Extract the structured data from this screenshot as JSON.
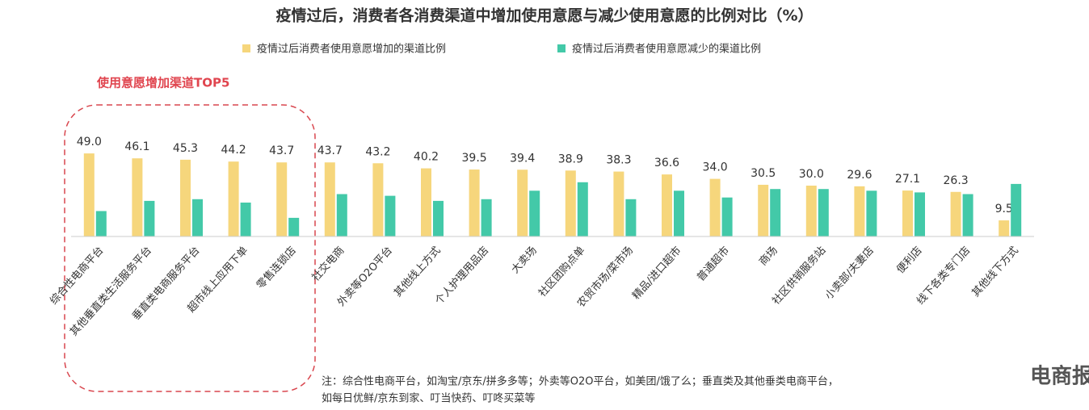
{
  "chart_data": {
    "type": "bar",
    "title": "疫情过后，消费者各消费渠道中增加使用意愿与减少使用意愿的比例对比（%）",
    "annotation": "使用意愿增加渠道TOP5",
    "notes": [
      "注：综合性电商平台，如淘宝/京东/拼多多等；外卖等O2O平台，如美团/饿了么；垂直类及其他垂类电商平台，",
      "如每日优鲜/京东到家、叮当快药、叮咚买菜等"
    ],
    "watermark": "电商报",
    "categories": [
      "综合性电商平台",
      "其他垂直类生活服务平台",
      "垂直类电商服务平台",
      "超市线上应用下单",
      "零售连锁店",
      "社交电商",
      "外卖等O2O平台",
      "其他线上方式",
      "个人护理用品店",
      "大卖场",
      "社区团购点单",
      "农贸市场/菜市场",
      "精品/进口超市",
      "普通超市",
      "商场",
      "社区供销服务站",
      "小卖部/夫妻店",
      "便利店",
      "线下各类专门店",
      "其他线下方式"
    ],
    "series": [
      {
        "name": "疫情过后消费者使用意愿增加的渠道比例",
        "color": "#f6d67c",
        "values": [
          49.0,
          46.1,
          45.3,
          44.2,
          43.7,
          43.7,
          43.2,
          40.2,
          39.5,
          39.4,
          38.9,
          38.3,
          36.6,
          34.0,
          30.5,
          30.0,
          29.6,
          27.1,
          26.3,
          9.5
        ],
        "value_labels": [
          "49.0",
          "46.1",
          "45.3",
          "44.2",
          "43.7",
          "43.7",
          "43.2",
          "40.2",
          "39.5",
          "39.4",
          "38.9",
          "38.3",
          "36.6",
          "34.0",
          "30.5",
          "30.0",
          "29.6",
          "27.1",
          "26.3",
          "9.5"
        ]
      },
      {
        "name": "疫情过后消费者使用意愿减少的渠道比例",
        "color": "#43c9a8",
        "values": [
          15,
          21,
          22,
          20,
          11,
          25,
          24,
          21,
          22,
          27,
          32,
          22,
          27,
          23,
          28,
          28,
          27,
          26,
          25,
          31
        ]
      }
    ],
    "ylim": [
      0,
      50
    ]
  }
}
